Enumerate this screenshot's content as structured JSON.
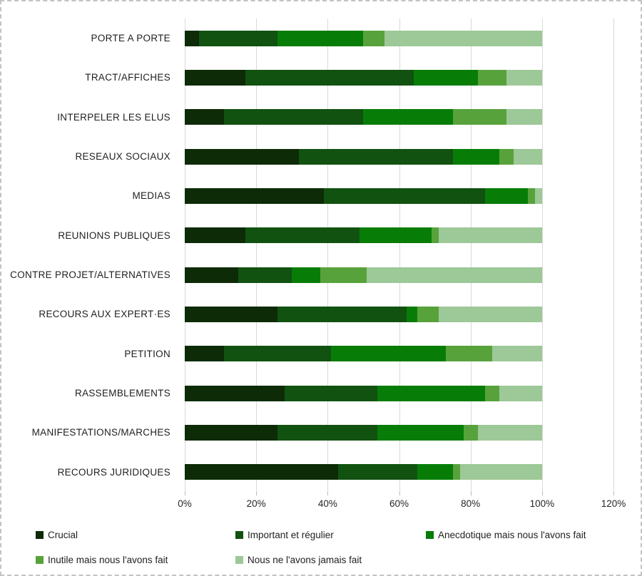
{
  "chart_data": {
    "type": "bar",
    "orientation": "horizontal",
    "stacked": true,
    "title": "",
    "xlabel": "",
    "ylabel": "",
    "grid": true,
    "legend_position": "bottom",
    "x_axis": {
      "min": 0,
      "max": 120,
      "tick_step": 20,
      "ticks": [
        "0%",
        "20%",
        "40%",
        "60%",
        "80%",
        "100%",
        "120%"
      ]
    },
    "categories": [
      "PORTE A PORTE",
      "TRACT/AFFICHES",
      "INTERPELER LES ELUS",
      "RESEAUX SOCIAUX",
      "MEDIAS",
      "REUNIONS PUBLIQUES",
      "CONTRE PROJET/ALTERNATIVES",
      "RECOURS AUX EXPERT·ES",
      "PETITION",
      "RASSEMBLEMENTS",
      "MANIFESTATIONS/MARCHES",
      "RECOURS JURIDIQUES"
    ],
    "series": [
      {
        "name": "Crucial",
        "color": "#0d2b06",
        "values": [
          4,
          17,
          11,
          32,
          39,
          17,
          15,
          26,
          11,
          28,
          26,
          43
        ]
      },
      {
        "name": "Important et régulier",
        "color": "#115211",
        "values": [
          22,
          47,
          39,
          43,
          45,
          32,
          15,
          36,
          30,
          26,
          28,
          22
        ]
      },
      {
        "name": "Anecdotique mais nous l'avons fait",
        "color": "#077d07",
        "values": [
          24,
          18,
          25,
          13,
          12,
          20,
          8,
          3,
          32,
          30,
          24,
          10
        ]
      },
      {
        "name": "Inutile mais nous l'avons fait",
        "color": "#58a23c",
        "values": [
          6,
          8,
          15,
          4,
          2,
          2,
          13,
          6,
          13,
          4,
          4,
          2
        ]
      },
      {
        "name": "Nous ne l'avons jamais fait",
        "color": "#9dc897",
        "values": [
          44,
          10,
          10,
          8,
          2,
          29,
          49,
          29,
          14,
          12,
          18,
          23
        ]
      }
    ],
    "values_unit": "%"
  },
  "colors": {
    "background": "#ffffff",
    "gridline": "#d9d9d9",
    "frame_dash": "#c3c3c3",
    "text": "#1f1f1f"
  }
}
